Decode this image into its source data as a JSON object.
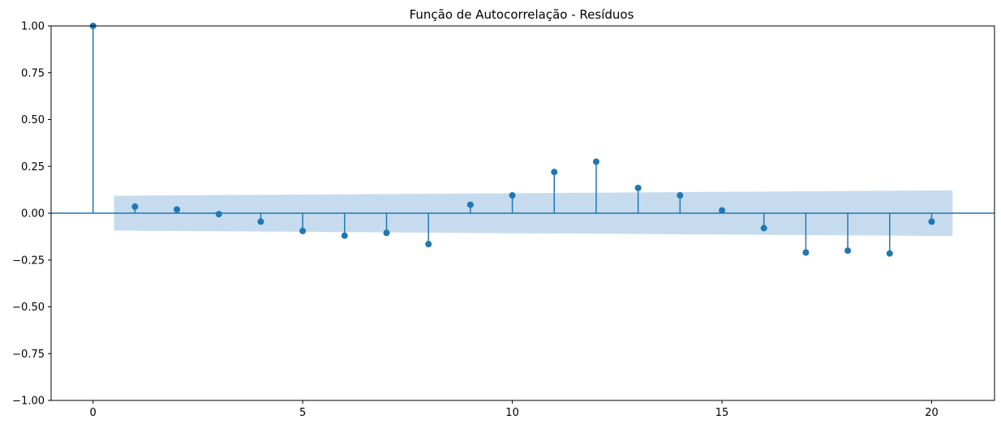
{
  "chart_data": {
    "type": "stem",
    "title": "Função de Autocorrelação - Resíduos",
    "xlabel": "",
    "ylabel": "",
    "xlim": [
      -1,
      21.5
    ],
    "ylim": [
      -1.0,
      1.0
    ],
    "x_ticks": [
      0,
      5,
      10,
      15,
      20
    ],
    "x_tick_labels": [
      "0",
      "5",
      "10",
      "15",
      "20"
    ],
    "y_ticks": [
      1.0,
      0.75,
      0.5,
      0.25,
      0.0,
      -0.25,
      -0.5,
      -0.75,
      -1.0
    ],
    "y_tick_labels": [
      "1.00",
      "0.75",
      "0.50",
      "0.25",
      "0.00",
      "−0.25",
      "−0.50",
      "−0.75",
      "−1.00"
    ],
    "grid": false,
    "lags": [
      0,
      1,
      2,
      3,
      4,
      5,
      6,
      7,
      8,
      9,
      10,
      11,
      12,
      13,
      14,
      15,
      16,
      17,
      18,
      19,
      20
    ],
    "values": [
      1.0,
      0.035,
      0.02,
      -0.005,
      -0.045,
      -0.095,
      -0.12,
      -0.105,
      -0.165,
      0.045,
      0.095,
      0.22,
      0.275,
      0.135,
      0.095,
      0.015,
      -0.08,
      -0.21,
      -0.2,
      -0.215,
      -0.045
    ],
    "confidence_band": {
      "x": [
        0.5,
        20.5
      ],
      "upper": [
        0.093,
        0.122
      ],
      "lower": [
        -0.093,
        -0.122
      ]
    },
    "colors": {
      "stem": "#1f77b4",
      "band": "#c6dcee",
      "axis": "#000000"
    }
  }
}
